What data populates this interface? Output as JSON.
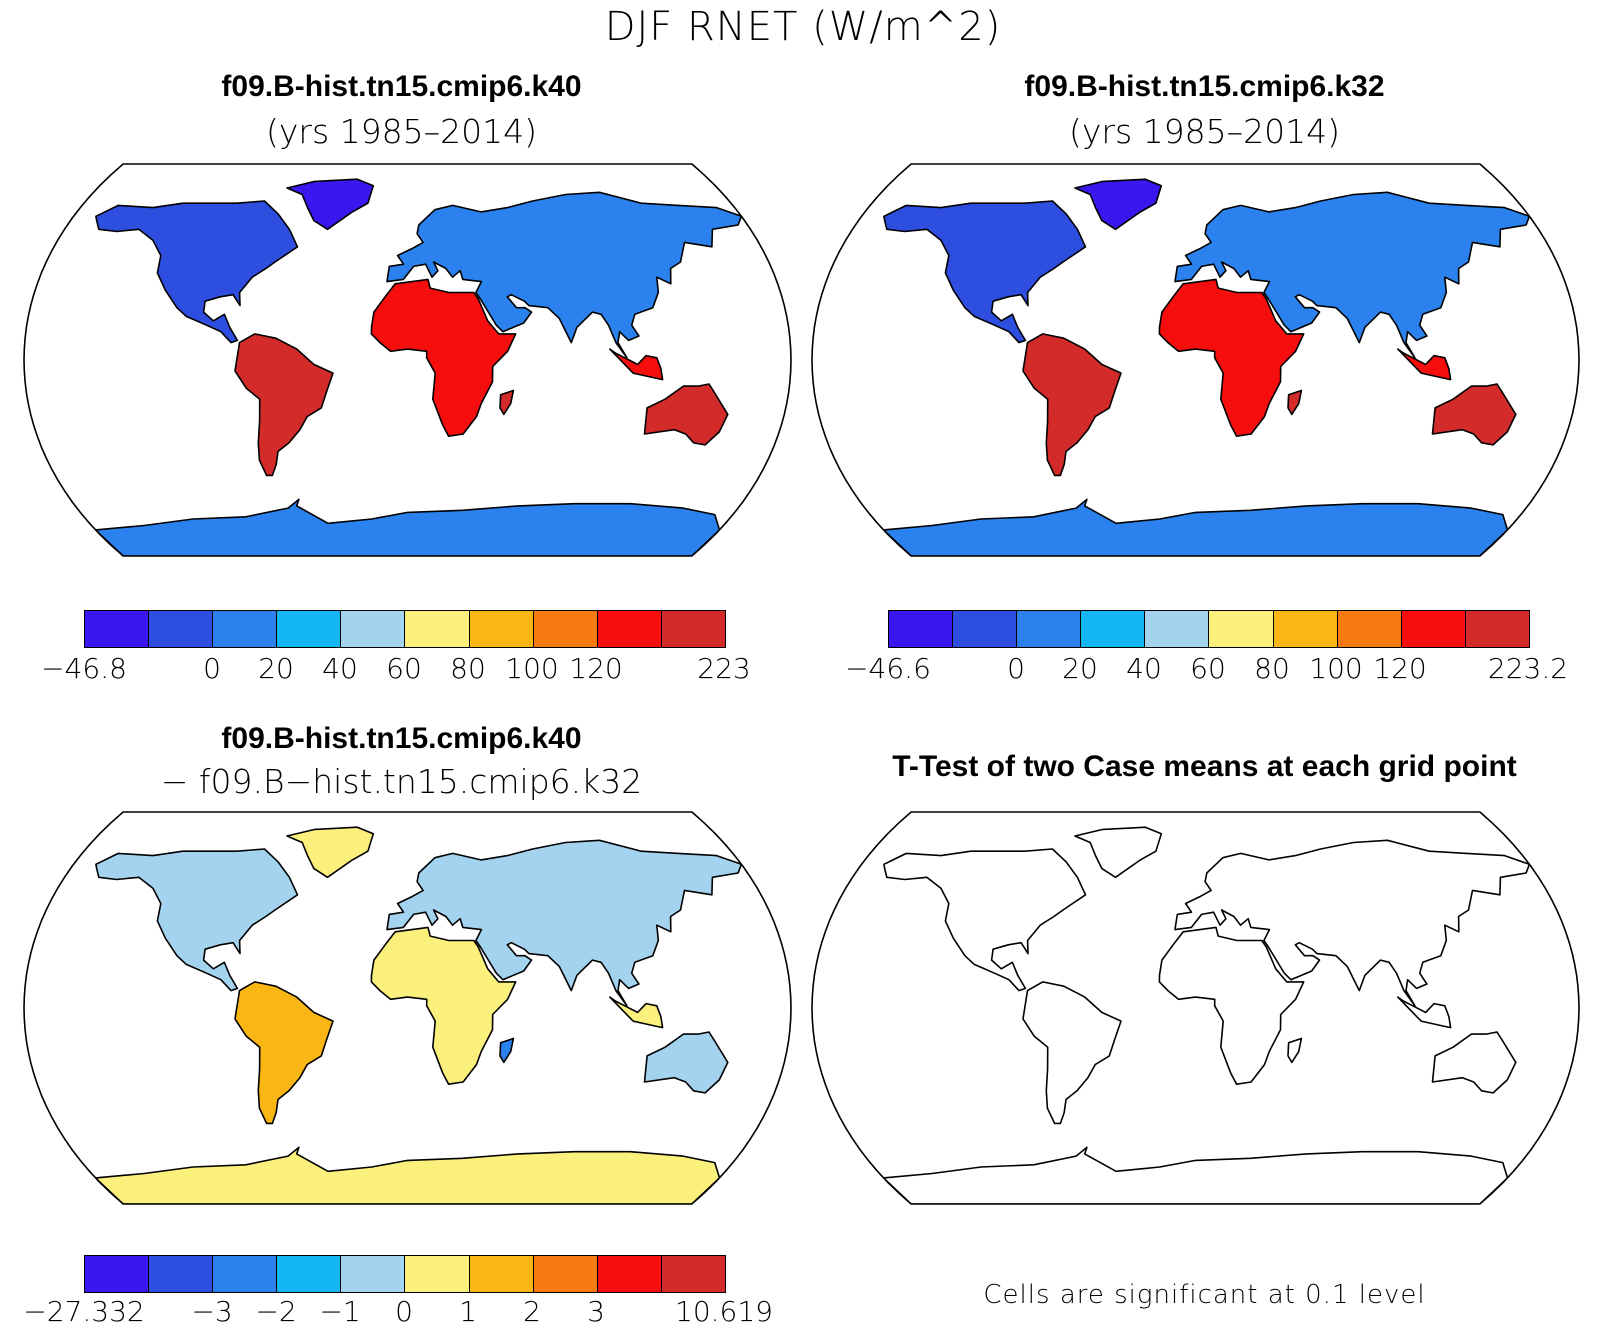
{
  "title": "DJF RNET (W/m^2)",
  "panels": [
    {
      "name": "panel-case1",
      "title": "f09.B-hist.tn15.cmip6.k40",
      "subtitle": "(yrs 1985–2014)",
      "colorbar": {
        "colors": [
          "#3b16ee",
          "#2e4ee0",
          "#2b82ee",
          "#13b6f2",
          "#a3d3ef",
          "#fbf07c",
          "#f9b615",
          "#f97a10",
          "#f60d0d",
          "#d32a2a"
        ],
        "labels": [
          "−46.8",
          "0",
          "20",
          "40",
          "60",
          "80",
          "100",
          "120",
          "223"
        ],
        "label_edges": [
          0,
          2,
          3,
          4,
          5,
          6,
          7,
          8,
          10
        ]
      }
    },
    {
      "name": "panel-case2",
      "title": "f09.B-hist.tn15.cmip6.k32",
      "subtitle": "(yrs 1985–2014)",
      "colorbar": {
        "colors": [
          "#3b16ee",
          "#2e4ee0",
          "#2b82ee",
          "#13b6f2",
          "#a3d3ef",
          "#fbf07c",
          "#f9b615",
          "#f97a10",
          "#f60d0d",
          "#d32a2a"
        ],
        "labels": [
          "−46.6",
          "0",
          "20",
          "40",
          "60",
          "80",
          "100",
          "120",
          "223.2"
        ],
        "label_edges": [
          0,
          2,
          3,
          4,
          5,
          6,
          7,
          8,
          10
        ]
      }
    },
    {
      "name": "panel-difference",
      "title": "f09.B-hist.tn15.cmip6.k40",
      "subtitle": "− f09.B−hist.tn15.cmip6.k32",
      "colorbar": {
        "colors": [
          "#3b16ee",
          "#2e4ee0",
          "#2b82ee",
          "#13b6f2",
          "#a3d3ef",
          "#fbf07c",
          "#f9b615",
          "#f97a10",
          "#f60d0d",
          "#d32a2a"
        ],
        "labels": [
          "−27.332",
          "−3",
          "−2",
          "−1",
          "0",
          "1",
          "2",
          "3",
          "10.619"
        ],
        "label_edges": [
          0,
          2,
          3,
          4,
          5,
          6,
          7,
          8,
          10
        ]
      }
    },
    {
      "name": "panel-ttest",
      "title": "T-Test of two Case means at each grid point",
      "note": "Cells are significant at 0.1 level",
      "significant_color": "#e01010"
    }
  ]
}
